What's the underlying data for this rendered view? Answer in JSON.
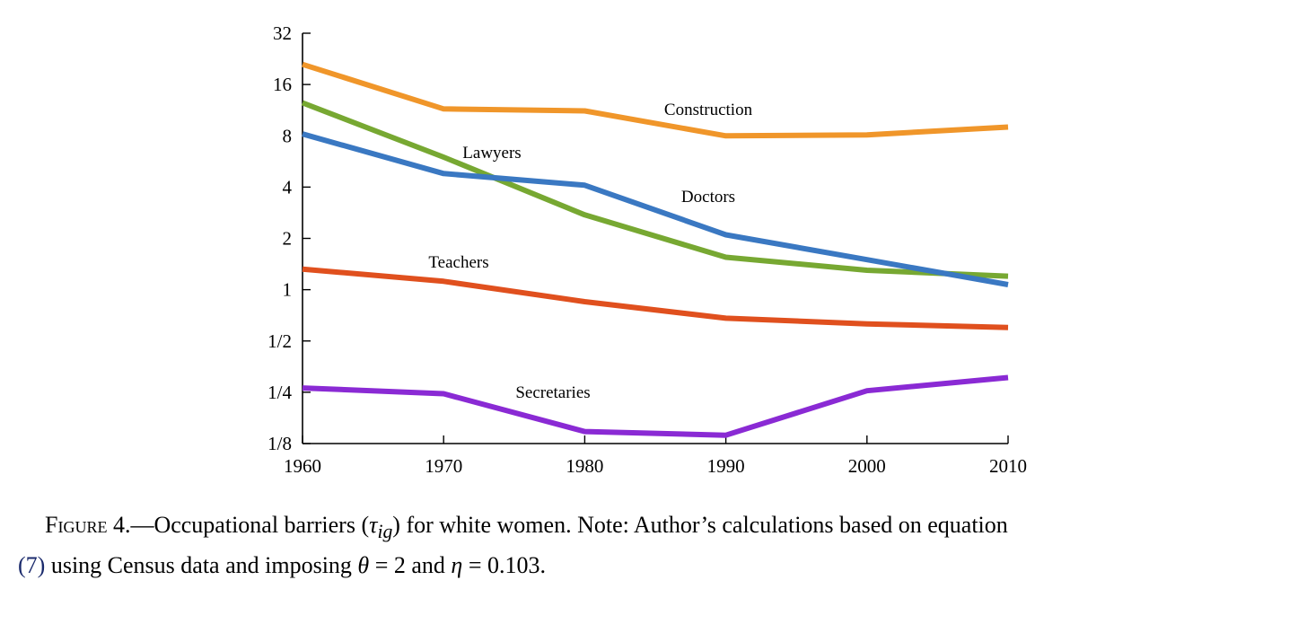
{
  "chart_data": {
    "type": "line",
    "yscale": "log2",
    "ylim": [
      0.125,
      32
    ],
    "xlim": [
      1960,
      2010
    ],
    "x": [
      1960,
      1970,
      1980,
      1990,
      2000,
      2010
    ],
    "x_ticks": [
      "1960",
      "1970",
      "1980",
      "1990",
      "2000",
      "2010"
    ],
    "y_tick_values": [
      0.125,
      0.25,
      0.5,
      1,
      2,
      4,
      8,
      16,
      32
    ],
    "y_ticks": [
      "1/8",
      "1/4",
      "1/2",
      "1",
      "2",
      "4",
      "8",
      "16",
      "32"
    ],
    "series": [
      {
        "name": "Construction",
        "color": "#f0962a",
        "values": [
          21,
          11.5,
          11.2,
          8.0,
          8.1,
          9.0
        ]
      },
      {
        "name": "Lawyers",
        "color": "#77a832",
        "values": [
          12.5,
          6.0,
          2.75,
          1.55,
          1.3,
          1.2
        ]
      },
      {
        "name": "Doctors",
        "color": "#3a78c2",
        "values": [
          8.2,
          4.8,
          4.1,
          2.1,
          1.5,
          1.07
        ]
      },
      {
        "name": "Teachers",
        "color": "#e0501e",
        "values": [
          1.32,
          1.12,
          0.85,
          0.68,
          0.63,
          0.6
        ]
      },
      {
        "name": "Secretaries",
        "color": "#8a2ad4",
        "values": [
          0.265,
          0.245,
          0.147,
          0.14,
          0.255,
          0.305
        ]
      }
    ]
  },
  "caption": {
    "label": "Figure 4.",
    "dash": "—",
    "text_a": "Occupational barriers (",
    "tau": "τ",
    "tau_sub": "ig",
    "text_b": ") for white women. Note: Author’s calculations based on equation",
    "eq_ref": "(7)",
    "text_c": " using Census data and imposing ",
    "theta": "θ",
    "theta_val": " = 2 and ",
    "eta": "η",
    "eta_val": " = 0.103."
  }
}
